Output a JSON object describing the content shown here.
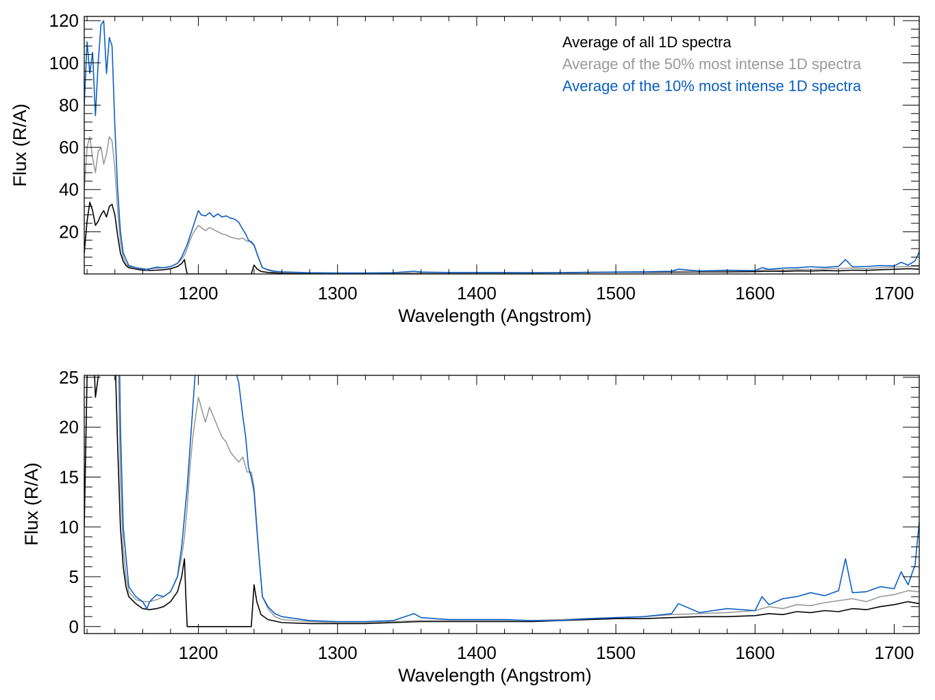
{
  "chart_data": [
    {
      "type": "line",
      "xlabel": "Wavelength (Angstrom)",
      "ylabel": "Flux (R/A)",
      "xlim": [
        1118,
        1718
      ],
      "ylim": [
        0,
        122
      ],
      "xticks": [
        1200,
        1300,
        1400,
        1500,
        1600,
        1700
      ],
      "yticks": [
        20,
        40,
        60,
        80,
        100,
        120
      ],
      "legend_position": "top-right",
      "series": [
        {
          "name": "Average of all 1D spectra",
          "color": "#000000",
          "x": [
            1118,
            1120,
            1122,
            1124,
            1126,
            1128,
            1130,
            1132,
            1134,
            1136,
            1138,
            1140,
            1142,
            1144,
            1146,
            1148,
            1150,
            1155,
            1160,
            1165,
            1170,
            1175,
            1180,
            1185,
            1188,
            1190,
            1191,
            1192,
            1200,
            1210,
            1220,
            1230,
            1238,
            1239,
            1240,
            1242,
            1245,
            1250,
            1260,
            1280,
            1300,
            1320,
            1340,
            1360,
            1380,
            1400,
            1420,
            1440,
            1460,
            1480,
            1500,
            1520,
            1540,
            1560,
            1580,
            1600,
            1610,
            1620,
            1630,
            1640,
            1650,
            1660,
            1670,
            1680,
            1690,
            1700,
            1710,
            1718
          ],
          "y": [
            10,
            25,
            34,
            30,
            23,
            25,
            28,
            30,
            27,
            32,
            33,
            28,
            18,
            10,
            6,
            4,
            3,
            2.3,
            1.8,
            1.7,
            1.8,
            2.0,
            2.5,
            3.5,
            5.0,
            6.8,
            3.0,
            0,
            0,
            0,
            0,
            0,
            0,
            2.0,
            4.2,
            2.5,
            1.2,
            0.7,
            0.4,
            0.3,
            0.3,
            0.3,
            0.4,
            0.5,
            0.5,
            0.5,
            0.5,
            0.5,
            0.6,
            0.7,
            0.8,
            0.8,
            0.9,
            1.0,
            1.0,
            1.1,
            1.3,
            1.2,
            1.5,
            1.4,
            1.6,
            1.5,
            1.8,
            1.7,
            2.0,
            2.2,
            2.5,
            2.3
          ]
        },
        {
          "name": "Average of the 50% most intense 1D spectra",
          "color": "#999999",
          "x": [
            1118,
            1120,
            1122,
            1124,
            1126,
            1128,
            1130,
            1132,
            1134,
            1136,
            1138,
            1140,
            1142,
            1144,
            1146,
            1148,
            1150,
            1155,
            1160,
            1165,
            1170,
            1175,
            1180,
            1185,
            1188,
            1190,
            1192,
            1194,
            1196,
            1198,
            1200,
            1202,
            1205,
            1208,
            1211,
            1214,
            1217,
            1220,
            1223,
            1226,
            1229,
            1232,
            1235,
            1238,
            1240,
            1243,
            1246,
            1250,
            1255,
            1260,
            1280,
            1300,
            1320,
            1340,
            1360,
            1380,
            1400,
            1420,
            1440,
            1460,
            1480,
            1500,
            1520,
            1540,
            1560,
            1580,
            1600,
            1610,
            1620,
            1630,
            1640,
            1650,
            1660,
            1670,
            1680,
            1690,
            1700,
            1710,
            1718
          ],
          "y": [
            40,
            60,
            65,
            55,
            48,
            58,
            60,
            52,
            57,
            65,
            63,
            50,
            30,
            15,
            8,
            5,
            3.5,
            2.7,
            2.5,
            2.5,
            2.7,
            3.0,
            3.5,
            5,
            7,
            9,
            12,
            16,
            19,
            21,
            23,
            22,
            20.5,
            22,
            21,
            20,
            19,
            18.5,
            17.5,
            17,
            16.5,
            17,
            15.5,
            15.5,
            14,
            8,
            3,
            1.8,
            1.0,
            0.7,
            0.5,
            0.4,
            0.4,
            0.5,
            0.6,
            0.6,
            0.6,
            0.6,
            0.6,
            0.7,
            0.8,
            0.9,
            1.0,
            1.2,
            1.3,
            1.4,
            1.6,
            2.0,
            1.8,
            2.2,
            2.1,
            2.4,
            2.6,
            2.8,
            2.5,
            3.0,
            3.2,
            3.6,
            3.5
          ]
        },
        {
          "name": "Average of the 10% most intense 1D spectra",
          "color": "#0a5ec2",
          "x": [
            1118,
            1120,
            1122,
            1124,
            1126,
            1128,
            1130,
            1132,
            1134,
            1136,
            1138,
            1140,
            1142,
            1144,
            1146,
            1148,
            1150,
            1155,
            1160,
            1163,
            1165,
            1170,
            1175,
            1180,
            1185,
            1188,
            1190,
            1192,
            1194,
            1196,
            1198,
            1200,
            1202,
            1205,
            1208,
            1211,
            1214,
            1217,
            1220,
            1223,
            1226,
            1229,
            1232,
            1234,
            1236,
            1238,
            1240,
            1243,
            1246,
            1250,
            1255,
            1260,
            1280,
            1300,
            1320,
            1340,
            1355,
            1360,
            1380,
            1400,
            1420,
            1440,
            1460,
            1480,
            1500,
            1520,
            1540,
            1545,
            1560,
            1580,
            1600,
            1605,
            1610,
            1620,
            1630,
            1640,
            1650,
            1660,
            1665,
            1670,
            1680,
            1690,
            1700,
            1705,
            1710,
            1715,
            1718
          ],
          "y": [
            80,
            110,
            95,
            105,
            75,
            100,
            118,
            120,
            95,
            112,
            108,
            70,
            40,
            20,
            10,
            7,
            4,
            3,
            2.5,
            1.8,
            2.5,
            3.2,
            3.0,
            3.5,
            5,
            8,
            11,
            14,
            18,
            22,
            26,
            30,
            28,
            27.5,
            29,
            27,
            28.5,
            27,
            27.5,
            26.5,
            26,
            24.5,
            21,
            19,
            16,
            15,
            13.5,
            8,
            3,
            2.0,
            1.3,
            1.0,
            0.6,
            0.5,
            0.5,
            0.6,
            1.3,
            0.9,
            0.7,
            0.7,
            0.7,
            0.6,
            0.6,
            0.8,
            0.9,
            1.0,
            1.3,
            2.3,
            1.4,
            1.8,
            1.6,
            3.0,
            2.2,
            2.8,
            3.0,
            3.4,
            3.1,
            3.6,
            6.8,
            3.4,
            3.5,
            4.0,
            3.8,
            5.5,
            4.2,
            6.2,
            10.5
          ]
        }
      ]
    },
    {
      "type": "line",
      "xlabel": "Wavelength (Angstrom)",
      "ylabel": "Flux (R/A)",
      "xlim": [
        1118,
        1718
      ],
      "ylim": [
        -0.7,
        25.2
      ],
      "xticks": [
        1200,
        1300,
        1400,
        1500,
        1600,
        1700
      ],
      "yticks": [
        0,
        5,
        10,
        15,
        20,
        25
      ],
      "series_ref": "same three series as the first panel, zoomed to 0–25 on the y axis"
    }
  ]
}
